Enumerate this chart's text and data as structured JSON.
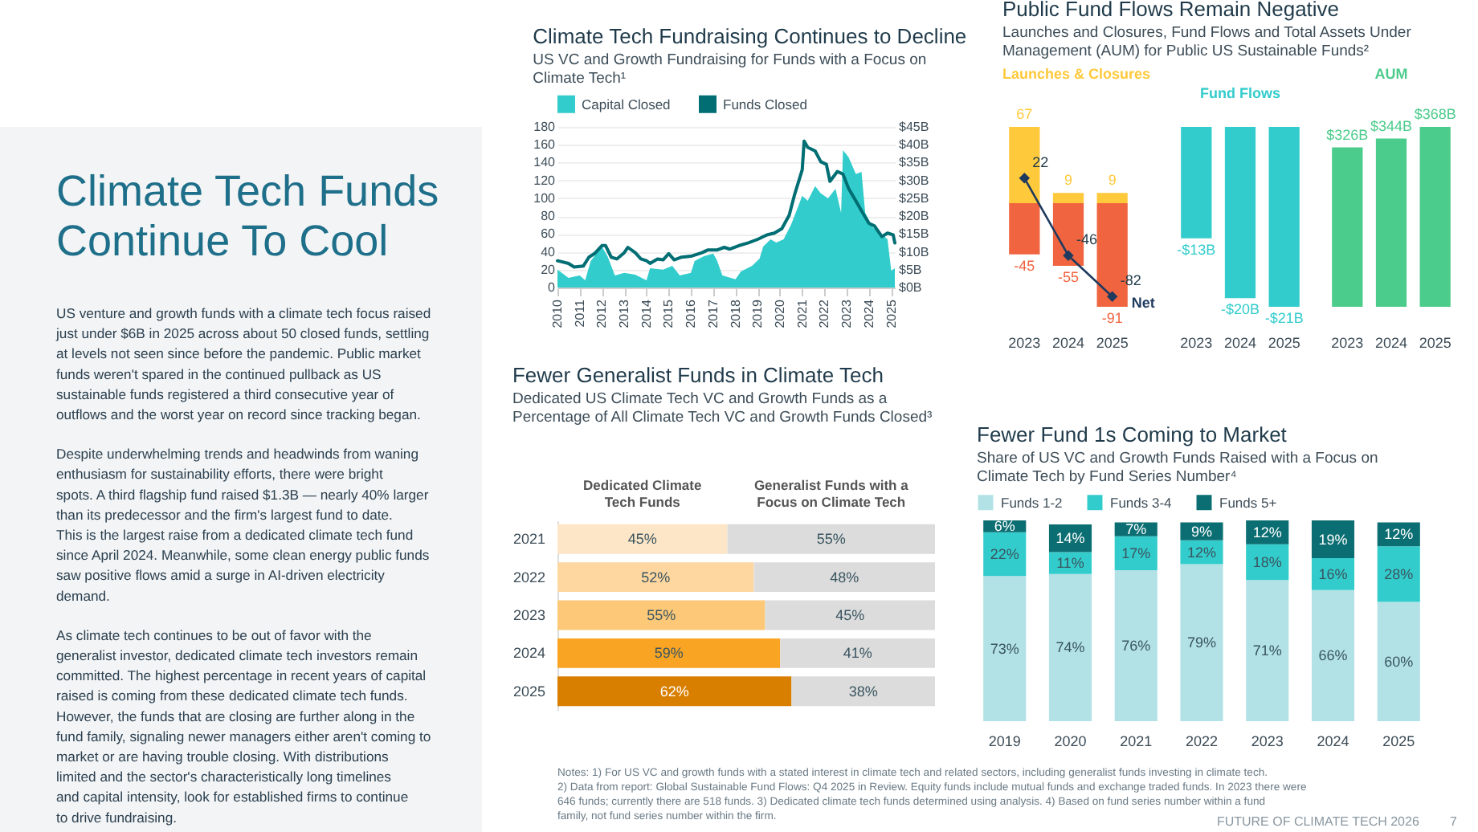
{
  "chart_data": [
    {
      "type": "line",
      "annotations": [
        "Climate Tech Funds Continue To Cool",
        "US venture and growth funds with a climate tech focus raised just under $6B in 2025 across about 50 closed funds, settling at levels not seen since before the pandemic. Public market funds weren't spared in the continued pullback as US sustainable funds registered a third consecutive year of outflows and the worst year on record since tracking began.",
        "Despite underwhelming trends and headwinds from waning enthusiasm for sustainability efforts, there were bright spots. A third flagship fund raised $1.3B — nearly 40% larger than its predecessor and the firm's largest fund to date. This is the largest raise from a dedicated climate tech fund since April 2024. Meanwhile, some clean energy public funds saw positive flows amid a surge in AI-driven electricity demand.",
        "As climate tech continues to be out of favor with the generalist investor, dedicated climate tech investors remain committed. The highest percentage in recent years of capital raised is coming from these dedicated climate tech funds. However, the funds that are closing are further along in the fund family, signaling newer managers either aren't coming to market or are having trouble closing. With distributions limited and the sector's characteristically long timelines and capital intensity, look for established firms to continue to drive fundraising."
      ],
      "title": "Climate Tech Fundraising Continues to Decline",
      "subtitle": "US VC and Growth Fundraising for Funds with a Focus on Climate Tech¹",
      "legend": "top left",
      "grid": "y",
      "xlim": [
        "2010-01",
        "2025-03"
      ],
      "xticks": [
        "2010",
        "2011",
        "2012",
        "2013",
        "2014",
        "2015",
        "2016",
        "2017",
        "2018",
        "2019",
        "2020",
        "2021",
        "2022",
        "2023",
        "2024",
        "2025"
      ],
      "ylim": [
        0,
        180
      ],
      "yticks": [
        0,
        20,
        40,
        60,
        80,
        100,
        120,
        140,
        160,
        180
      ],
      "y2lim": [
        0,
        45
      ],
      "y2ticks": [
        {
          "value": 0,
          "label": "$0B"
        },
        {
          "value": 5,
          "label": "$5B"
        },
        {
          "value": 10,
          "label": "$10B"
        },
        {
          "value": 15,
          "label": "$15B"
        },
        {
          "value": 20,
          "label": "$20B"
        },
        {
          "value": 25,
          "label": "$25B"
        },
        {
          "value": 30,
          "label": "$30B"
        },
        {
          "value": 35,
          "label": "$35B"
        },
        {
          "value": 40,
          "label": "$40B"
        },
        {
          "value": 45,
          "label": "$45B"
        }
      ],
      "series": [
        {
          "name": "Capital Closed",
          "type": "area",
          "axis": "y2",
          "color": "#33cccc",
          "x": [
            "2010-01",
            "2010-07",
            "2011-01",
            "2011-04",
            "2011-07",
            "2011-10",
            "2012-01",
            "2012-04",
            "2012-08",
            "2013-01",
            "2013-07",
            "2014-01",
            "2014-03",
            "2014-10",
            "2015-03",
            "2015-07",
            "2016-01",
            "2016-03",
            "2016-08",
            "2017-01",
            "2017-03",
            "2017-06",
            "2018-01",
            "2018-04",
            "2018-10",
            "2019-02",
            "2019-04",
            "2019-08",
            "2019-11",
            "2020-03",
            "2020-07",
            "2020-10",
            "2021-01",
            "2021-04",
            "2021-08",
            "2021-11",
            "2022-03",
            "2022-07",
            "2022-10",
            "2022-11",
            "2023-02",
            "2023-06",
            "2023-09",
            "2023-11",
            "2024-03",
            "2024-08",
            "2024-11",
            "2025-01",
            "2025-03"
          ],
          "values": [
            5.0,
            2.7,
            3.4,
            2.0,
            7.4,
            9.5,
            11.5,
            8.8,
            3.4,
            4.1,
            3.6,
            2.0,
            5.4,
            5.0,
            6.1,
            3.4,
            4.1,
            7.4,
            8.8,
            9.5,
            7.7,
            3.4,
            2.3,
            4.5,
            6.1,
            8.1,
            11.5,
            13.5,
            12.6,
            13.5,
            17.6,
            21.6,
            25.7,
            24.3,
            28.4,
            26.4,
            25.0,
            27.7,
            20.9,
            38.5,
            36.5,
            31.8,
            32.4,
            20.9,
            16.9,
            14.9,
            13.5,
            4.7,
            5.4
          ]
        },
        {
          "name": "Funds Closed",
          "type": "line",
          "axis": "y",
          "color": "#006e73",
          "x": [
            "2010-01",
            "2010-07",
            "2010-10",
            "2011-03",
            "2011-06",
            "2011-09",
            "2012-01",
            "2012-03",
            "2012-06",
            "2012-09",
            "2013-01",
            "2013-03",
            "2013-07",
            "2013-10",
            "2014-01",
            "2014-03",
            "2014-07",
            "2014-10",
            "2015-01",
            "2015-04",
            "2015-08",
            "2016-01",
            "2016-07",
            "2016-10",
            "2017-03",
            "2017-07",
            "2017-10",
            "2018-03",
            "2018-08",
            "2019-01",
            "2019-06",
            "2019-10",
            "2020-02",
            "2020-06",
            "2020-09",
            "2021-01",
            "2021-02",
            "2021-04",
            "2021-08",
            "2021-11",
            "2022-02",
            "2022-04",
            "2022-08",
            "2022-11",
            "2023-02",
            "2023-06",
            "2023-09",
            "2024-01",
            "2024-04",
            "2024-08",
            "2024-11",
            "2025-02",
            "2025-03"
          ],
          "values": [
            30,
            27,
            23,
            24,
            34,
            38,
            47,
            47,
            34,
            32,
            39,
            45,
            39,
            32,
            30,
            27,
            32,
            31,
            38,
            31,
            34,
            35,
            39,
            42,
            42,
            45,
            43,
            47,
            50,
            54,
            59,
            61,
            66,
            81,
            105,
            132,
            164,
            157,
            153,
            141,
            138,
            119,
            130,
            127,
            111,
            97,
            86,
            72,
            69,
            57,
            61,
            59,
            50
          ]
        }
      ]
    },
    {
      "type": "bar",
      "title": "Public Fund Flows Remain Negative",
      "subtitle": "Launches and Closures, Fund Flows and Total Assets Under Management (AUM) for Public US Sustainable Funds²",
      "annotations": [
        "Launches & Closures"
      ],
      "data_labels": true,
      "stacked": true,
      "categories": [
        "2023",
        "2024",
        "2025"
      ],
      "series": [
        {
          "color": "#ffc93c",
          "values": [
            67,
            9,
            9
          ]
        },
        {
          "color": "#f0643f",
          "values": [
            -45,
            -55,
            -91
          ]
        },
        {
          "name": "Net",
          "type": "line",
          "marker": "diamond",
          "color": "#1f3a5f",
          "values": [
            22,
            -46,
            -82
          ]
        }
      ]
    },
    {
      "type": "bar",
      "title": "Fund Flows",
      "categories": [
        "2023",
        "2024",
        "2025"
      ],
      "series": [
        {
          "color": "#33cccc",
          "values": [
            -13,
            -20,
            -21
          ],
          "value_labels": [
            "-$13B",
            "-$20B",
            "-$21B"
          ]
        }
      ]
    },
    {
      "type": "bar",
      "title": "AUM",
      "categories": [
        "2023",
        "2024",
        "2025"
      ],
      "series": [
        {
          "color": "#4ccc8c",
          "values": [
            326,
            344,
            368
          ],
          "value_labels": [
            "$326B",
            "$344B",
            "$368B"
          ]
        }
      ]
    },
    {
      "type": "bar",
      "orientation": "horizontal",
      "stacked": true,
      "title": "Fewer Generalist Funds in Climate Tech",
      "subtitle": "Dedicated US Climate Tech VC and Growth Funds as a Percentage of All Climate Tech VC and Growth Funds Closed³",
      "categories": [
        "2021",
        "2022",
        "2023",
        "2024",
        "2025"
      ],
      "series": [
        {
          "name": "Dedicated Climate Tech Funds",
          "colors": [
            "#fde6c8",
            "#fdd6a0",
            "#fdc877",
            "#f9a423",
            "#d97f00"
          ],
          "values": [
            45,
            52,
            55,
            59,
            62
          ],
          "value_labels": [
            "45%",
            "52%",
            "55%",
            "59%",
            "62%"
          ]
        },
        {
          "name": "Generalist Funds with a Focus on Climate Tech",
          "color": "#dcdcdc",
          "values": [
            55,
            48,
            45,
            41,
            38
          ],
          "value_labels": [
            "55%",
            "48%",
            "45%",
            "41%",
            "38%"
          ]
        }
      ]
    },
    {
      "type": "bar",
      "stacked": true,
      "legend": "top left",
      "title": "Fewer Fund 1s Coming to Market",
      "subtitle": "Share of US VC and Growth Funds Raised with a Focus on Climate Tech by Fund Series Number⁴",
      "categories": [
        "2019",
        "2020",
        "2021",
        "2022",
        "2023",
        "2024",
        "2025"
      ],
      "series": [
        {
          "name": "Funds 1-2",
          "color": "#b2e2e6",
          "values": [
            73,
            74,
            76,
            79,
            71,
            66,
            60
          ],
          "value_labels": [
            "73%",
            "74%",
            "76%",
            "79%",
            "71%",
            "66%",
            "60%"
          ]
        },
        {
          "name": "Funds 3-4",
          "color": "#33cccc",
          "values": [
            22,
            11,
            17,
            12,
            18,
            16,
            28
          ],
          "value_labels": [
            "22%",
            "11%",
            "17%",
            "12%",
            "18%",
            "16%",
            "28%"
          ]
        },
        {
          "name": "Funds 5+",
          "color": "#0b6e72",
          "values": [
            6,
            14,
            7,
            9,
            12,
            19,
            12
          ],
          "value_labels": [
            "6%",
            "14%",
            "7%",
            "9%",
            "12%",
            "19%",
            "12%"
          ]
        }
      ],
      "annotations": [
        "Notes: 1) For US VC and growth funds with a stated interest in climate tech and related sectors, including generalist funds investing in climate tech. 2) Data from report: Global Sustainable Fund Flows: Q4 2025 in Review. Equity funds include mutual funds and exchange traded funds. In 2023 there were 646 funds; currently there are 518 funds. 3) Dedicated climate tech funds determined using analysis. 4) Based on fund series number within a fund family, not fund series number within the firm.",
        "FUTURE OF CLIMATE TECH 2026",
        "7"
      ]
    }
  ]
}
